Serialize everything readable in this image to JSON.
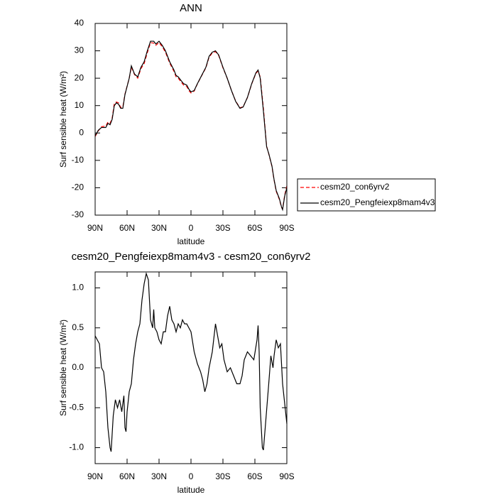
{
  "chart_data": [
    {
      "type": "line",
      "title": "ANN",
      "xlabel": "latitude",
      "ylabel": "Surf sensible heat (W/m²)",
      "xlim": [
        90,
        -90
      ],
      "xticks": [
        {
          "value": 90,
          "label": "90N"
        },
        {
          "value": 60,
          "label": "60N"
        },
        {
          "value": 30,
          "label": "30N"
        },
        0,
        {
          "value": -30,
          "label": "30S"
        },
        {
          "value": -60,
          "label": "60S"
        },
        {
          "value": -90,
          "label": "90S"
        }
      ],
      "ylim": [
        -30,
        40
      ],
      "yticks": [
        -30,
        -20,
        -10,
        0,
        10,
        20,
        30,
        40
      ],
      "legend": "right",
      "x": [
        90,
        87,
        84,
        80,
        78,
        76,
        74,
        72,
        70,
        68,
        66,
        64,
        62,
        58,
        56,
        53,
        50,
        47,
        44,
        41,
        38,
        35,
        33,
        30,
        27,
        24,
        20,
        16,
        14,
        12,
        10,
        7,
        4,
        2,
        0,
        -3,
        -6,
        -10,
        -14,
        -17,
        -20,
        -23,
        -26,
        -30,
        -34,
        -38,
        -42,
        -46,
        -49,
        -53,
        -57,
        -61,
        -63,
        -65,
        -68,
        -71,
        -73,
        -76,
        -78,
        -80,
        -83,
        -85,
        -86,
        -88,
        -90
      ],
      "series": [
        {
          "name": "cesm20_con6yrv2",
          "color": "#ff0000",
          "dash": "dashed",
          "values": [
            -1.3,
            0.8,
            2.3,
            2.5,
            4,
            3.5,
            5.5,
            10.8,
            11.3,
            11,
            9.3,
            9.5,
            14.2,
            20,
            24,
            21.3,
            20,
            23.5,
            25.3,
            29.3,
            33,
            32.8,
            32,
            33,
            31.5,
            29.5,
            25.5,
            22.5,
            20.5,
            20,
            19,
            17.5,
            17,
            15.5,
            14.6,
            15.3,
            17.9,
            20.9,
            23.8,
            27.7,
            29.2,
            29.7,
            28.3,
            23.8,
            20,
            15.5,
            11.6,
            9.2,
            9.6,
            12.9,
            17.9,
            21.8,
            22.6,
            20.5,
            9,
            -4.8,
            -7.6,
            -12.2,
            -17.2,
            -21.3,
            -24.3,
            -27.2,
            -27.8,
            -22.6,
            -19.3
          ]
        },
        {
          "name": "cesm20_Pengfeiexp8mam4v3",
          "color": "#000000",
          "dash": "solid",
          "values": [
            -1,
            1,
            2,
            2,
            3.5,
            3,
            5,
            10,
            11,
            10.5,
            9,
            9,
            14,
            20,
            24.5,
            21.5,
            20.5,
            24,
            26,
            30,
            33.5,
            33.5,
            32.5,
            33.5,
            32,
            30,
            26,
            23,
            21,
            20.5,
            19.5,
            18,
            17.5,
            16,
            15,
            15.5,
            18,
            21,
            24,
            28,
            29.5,
            30,
            28.5,
            24,
            20,
            15.5,
            11.5,
            9,
            9.5,
            13,
            18,
            22,
            23,
            20,
            8,
            -5,
            -7.5,
            -12,
            -17,
            -21,
            -24,
            -27,
            -28,
            -23,
            -20
          ]
        }
      ]
    },
    {
      "type": "line",
      "title": "cesm20_Pengfeiexp8mam4v3 - cesm20_con6yrv2",
      "xlabel": "latitude",
      "ylabel": "Surf sensible heat (W/m²)",
      "xlim": [
        90,
        -90
      ],
      "xticks": [
        {
          "value": 90,
          "label": "90N"
        },
        {
          "value": 60,
          "label": "60N"
        },
        {
          "value": 30,
          "label": "30N"
        },
        0,
        {
          "value": -30,
          "label": "30S"
        },
        {
          "value": -60,
          "label": "60S"
        },
        {
          "value": -90,
          "label": "90S"
        }
      ],
      "ylim": [
        -1.2,
        1.2
      ],
      "yticks": [
        {
          "value": -1,
          "label": "-1.0"
        },
        -0.5,
        {
          "value": 0,
          "label": "0.0"
        },
        0.5,
        {
          "value": 1,
          "label": "1.0"
        }
      ],
      "x": [
        90,
        88,
        86,
        84,
        82,
        80,
        78,
        76,
        75,
        73,
        71,
        69,
        67,
        65,
        63,
        62,
        61,
        60,
        58,
        56,
        54,
        52,
        50,
        48,
        46,
        44,
        42,
        40,
        38,
        36,
        35,
        34,
        32,
        30,
        28,
        26,
        24,
        22,
        20,
        18,
        16,
        14,
        12,
        10,
        8,
        6,
        4,
        2,
        0,
        -3,
        -6,
        -9,
        -11,
        -13,
        -15,
        -17,
        -20,
        -23,
        -25,
        -27,
        -29,
        -31,
        -34,
        -37,
        -40,
        -43,
        -46,
        -48,
        -50,
        -53,
        -56,
        -59,
        -62,
        -63,
        -64,
        -65,
        -67,
        -68,
        -70,
        -73,
        -75,
        -77,
        -78,
        -80,
        -82,
        -84,
        -86,
        -88,
        -90
      ],
      "series": [
        {
          "color": "#000000",
          "dash": "solid",
          "values": [
            0.4,
            0.35,
            0.3,
            0,
            -0.05,
            -0.3,
            -0.75,
            -1,
            -1.05,
            -0.6,
            -0.4,
            -0.5,
            -0.4,
            -0.55,
            -0.35,
            -0.75,
            -0.8,
            -0.55,
            -0.3,
            -0.2,
            0.1,
            0.3,
            0.45,
            0.55,
            0.85,
            1.05,
            1.18,
            1.1,
            0.6,
            0.5,
            0.73,
            0.5,
            0.45,
            0.35,
            0.3,
            0.45,
            0.45,
            0.65,
            0.77,
            0.6,
            0.55,
            0.45,
            0.55,
            0.5,
            0.6,
            0.55,
            0.55,
            0.5,
            0.45,
            0.2,
            0.05,
            -0.05,
            -0.15,
            -0.3,
            -0.2,
            0,
            0.2,
            0.55,
            0.4,
            0.25,
            0.3,
            0.1,
            -0.05,
            0,
            -0.1,
            -0.2,
            -0.2,
            -0.1,
            0.1,
            0.2,
            0.15,
            0.1,
            0.35,
            0.53,
            0.2,
            -0.5,
            -1,
            -1.03,
            -0.7,
            -0.2,
            0.15,
            0,
            0.15,
            0.35,
            0.25,
            0.3,
            -0.2,
            -0.45,
            -0.7
          ]
        }
      ]
    }
  ]
}
